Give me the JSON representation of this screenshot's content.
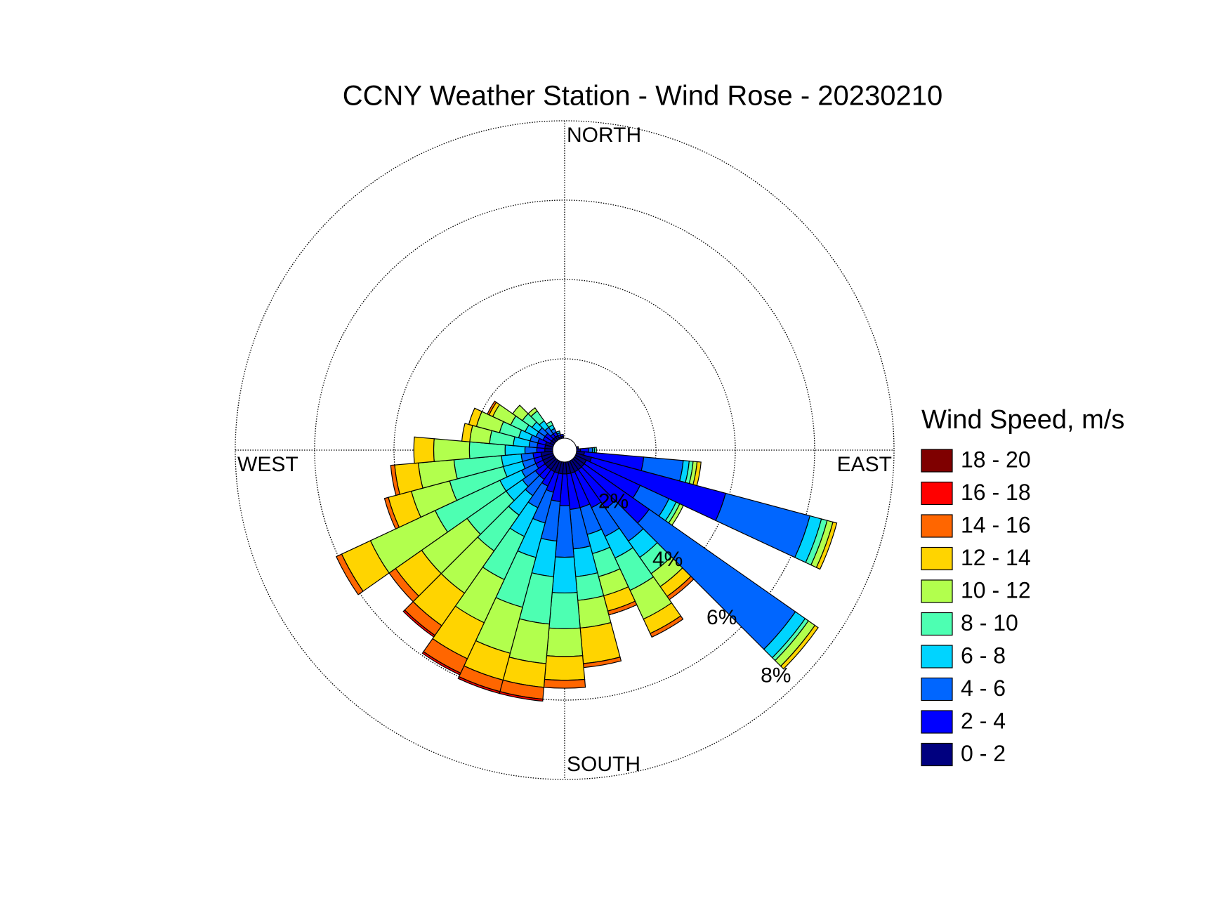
{
  "chart_data": {
    "type": "wind_rose",
    "title": "CCNY Weather Station - Wind Rose - 20230210",
    "direction_labels": [
      "NORTH",
      "EAST",
      "SOUTH",
      "WEST"
    ],
    "legend_title": "Wind Speed, m/s",
    "x": [
      0,
      10,
      20,
      30,
      40,
      50,
      60,
      70,
      80,
      90,
      100,
      110,
      120,
      130,
      140,
      150,
      160,
      170,
      180,
      190,
      200,
      210,
      220,
      230,
      240,
      250,
      260,
      270,
      280,
      290,
      300,
      310,
      320,
      330,
      340,
      350
    ],
    "rlim": [
      0,
      8
    ],
    "rticks": [
      {
        "value": 2,
        "label": "2%"
      },
      {
        "value": 4,
        "label": "4%"
      },
      {
        "value": 6,
        "label": "6%"
      },
      {
        "value": 8,
        "label": "8%"
      }
    ],
    "grid": true,
    "series": [
      {
        "name": "0 - 2",
        "color": "#00007f",
        "values": [
          0,
          0,
          0,
          0,
          0,
          0,
          0,
          0,
          0.05,
          0.1,
          0.2,
          0.4,
          0.3,
          0.3,
          0.3,
          0.3,
          0.3,
          0.3,
          0.3,
          0.3,
          0.3,
          0.3,
          0.3,
          0.3,
          0.3,
          0.3,
          0.3,
          0.2,
          0.2,
          0.2,
          0.1,
          0.1,
          0.1,
          0.1,
          0.05,
          0.05
        ]
      },
      {
        "name": "2 - 4",
        "color": "#0000ff",
        "values": [
          0,
          0,
          0,
          0,
          0,
          0,
          0,
          0,
          0,
          0.2,
          1.5,
          3.5,
          1.5,
          2.0,
          1.2,
          1.0,
          0.9,
          0.9,
          0.8,
          0.7,
          0.5,
          0.4,
          0.3,
          0.3,
          0.2,
          0.2,
          0.2,
          0.2,
          0.2,
          0.2,
          0.2,
          0.2,
          0.1,
          0.1,
          0.05,
          0.05
        ]
      },
      {
        "name": "4 - 6",
        "color": "#0066ff",
        "values": [
          0,
          0,
          0,
          0,
          0,
          0,
          0,
          0,
          0,
          0.1,
          1.0,
          2.2,
          0.8,
          4.5,
          1.0,
          0.8,
          0.7,
          1.0,
          1.3,
          1.0,
          0.8,
          0.6,
          0.5,
          0.4,
          0.4,
          0.3,
          0.3,
          0.3,
          0.2,
          0.2,
          0.2,
          0.2,
          0.2,
          0.1,
          0.05,
          0
        ]
      },
      {
        "name": "6 - 8",
        "color": "#00d4ff",
        "values": [
          0,
          0,
          0,
          0,
          0,
          0,
          0,
          0,
          0,
          0.05,
          0.15,
          0.3,
          0.2,
          0.3,
          0.5,
          0.6,
          0.5,
          0.7,
          0.9,
          0.9,
          0.9,
          0.8,
          0.6,
          0.5,
          0.6,
          0.5,
          0.5,
          0.5,
          0.4,
          0.3,
          0.3,
          0.2,
          0.2,
          0.1,
          0.05,
          0
        ]
      },
      {
        "name": "8 - 10",
        "color": "#4dffb2",
        "values": [
          0,
          0,
          0,
          0,
          0,
          0,
          0,
          0,
          0,
          0.05,
          0.1,
          0.15,
          0.1,
          0.1,
          0.5,
          0.9,
          0.6,
          0.6,
          0.9,
          1.2,
          1.3,
          1.2,
          1.1,
          1.2,
          1.8,
          1.4,
          1.2,
          0.9,
          0.6,
          0.5,
          0.4,
          0.3,
          0.3,
          0.1,
          0,
          0
        ]
      },
      {
        "name": "10 - 12",
        "color": "#b2ff4d",
        "values": [
          0,
          0,
          0,
          0,
          0,
          0,
          0,
          0,
          0,
          0,
          0.1,
          0.15,
          0.1,
          0.2,
          0.4,
          0.8,
          0.5,
          0.7,
          0.7,
          1.0,
          1.2,
          1.2,
          1.3,
          1.4,
          1.8,
          1.0,
          0.9,
          0.9,
          0.5,
          0.6,
          0.5,
          0.3,
          0.1,
          0,
          0,
          0
        ]
      },
      {
        "name": "12 - 14",
        "color": "#ffd400",
        "values": [
          0,
          0,
          0,
          0,
          0,
          0,
          0,
          0,
          0,
          0,
          0.1,
          0.1,
          0,
          0.1,
          0.3,
          0.4,
          0.4,
          0.9,
          0.6,
          0.6,
          0.7,
          1.0,
          1.0,
          0.8,
          0.8,
          0.6,
          0.6,
          0.5,
          0.2,
          0.2,
          0.1,
          0,
          0,
          0,
          0,
          0
        ]
      },
      {
        "name": "14 - 16",
        "color": "#ff6600",
        "values": [
          0,
          0,
          0,
          0,
          0,
          0,
          0,
          0,
          0,
          0,
          0,
          0,
          0,
          0,
          0.1,
          0.1,
          0.1,
          0.1,
          0.2,
          0.3,
          0.3,
          0.4,
          0.3,
          0.2,
          0.15,
          0.1,
          0.1,
          0,
          0,
          0,
          0.05,
          0,
          0,
          0,
          0,
          0
        ]
      },
      {
        "name": "16 - 18",
        "color": "#ff0000",
        "values": [
          0,
          0,
          0,
          0,
          0,
          0,
          0,
          0,
          0,
          0,
          0,
          0,
          0,
          0,
          0,
          0,
          0,
          0,
          0,
          0.05,
          0.05,
          0.05,
          0.05,
          0,
          0,
          0,
          0,
          0,
          0,
          0,
          0,
          0,
          0,
          0,
          0,
          0
        ]
      },
      {
        "name": "18 - 20",
        "color": "#7f0000",
        "values": [
          0,
          0,
          0,
          0,
          0,
          0,
          0,
          0,
          0,
          0,
          0,
          0,
          0,
          0,
          0,
          0,
          0,
          0,
          0,
          0,
          0,
          0,
          0,
          0,
          0,
          0,
          0,
          0,
          0,
          0,
          0,
          0,
          0,
          0,
          0,
          0
        ]
      }
    ]
  }
}
